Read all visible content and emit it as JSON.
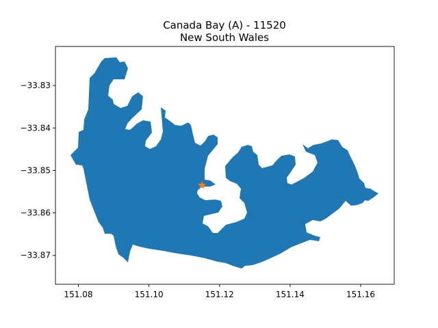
{
  "title": {
    "line1": "Canada Bay (A) - 11520",
    "line2": "New South Wales"
  },
  "map": {
    "region_name": "Canada Bay (A)",
    "region_code": "11520",
    "state": "New South Wales",
    "region_color": "#1f77b4",
    "marker": {
      "symbol": "star",
      "color": "#ff7f0e",
      "lon": 151.115,
      "lat": -33.8535
    },
    "xlim": [
      151.0735,
      151.1695
    ],
    "ylim": [
      -33.8768,
      -33.8208
    ],
    "x_ticks": [
      151.08,
      151.1,
      151.12,
      151.14,
      151.16
    ],
    "y_ticks": [
      -33.83,
      -33.84,
      -33.85,
      -33.86,
      -33.87
    ],
    "x_tick_labels": [
      "151.08",
      "151.10",
      "151.12",
      "151.14",
      "151.16"
    ],
    "y_tick_labels": [
      "−33.83",
      "−33.84",
      "−33.85",
      "−33.86",
      "−33.87"
    ],
    "grid": false
  }
}
